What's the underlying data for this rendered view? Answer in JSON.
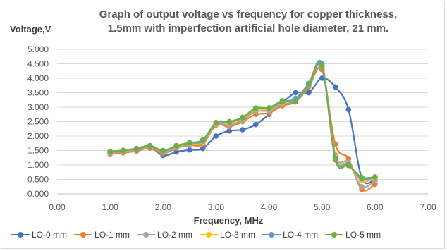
{
  "chart_data": {
    "type": "line",
    "title_lines": [
      "Graph of output voltage vs frequency for copper thickness,",
      "1.5mm with imperfection artificial hole diameter, 21 mm."
    ],
    "xlabel": "Frequency, MHz",
    "ylabel": "Voltage,V",
    "xlim": [
      0,
      7
    ],
    "ylim": [
      0,
      5
    ],
    "x_ticks": [
      "0.00",
      "1.00",
      "2.00",
      "3.00",
      "4.00",
      "5.00",
      "6.00",
      "7.00"
    ],
    "y_ticks": [
      "0.000",
      "0.500",
      "1.000",
      "1.500",
      "2.000",
      "2.500",
      "3.000",
      "3.500",
      "4.000",
      "4.500",
      "5.000"
    ],
    "grid": "horizontal",
    "legend_position": "bottom",
    "x": [
      1.0,
      1.25,
      1.5,
      1.75,
      2.0,
      2.25,
      2.5,
      2.75,
      3.0,
      3.25,
      3.5,
      3.75,
      4.0,
      4.25,
      4.5,
      4.75,
      5.0,
      5.25,
      5.5,
      5.75,
      6.0
    ],
    "series": [
      {
        "name": "LO-0 mm",
        "color": "#4472c4",
        "values": [
          1.45,
          1.48,
          1.53,
          1.62,
          1.33,
          1.45,
          1.52,
          1.57,
          2.0,
          2.18,
          2.22,
          2.4,
          2.75,
          3.15,
          3.5,
          3.5,
          4.0,
          3.7,
          2.92,
          0.55,
          0.5
        ]
      },
      {
        "name": "LO-1 mm",
        "color": "#ed7d31",
        "values": [
          1.38,
          1.42,
          1.48,
          1.58,
          1.4,
          1.58,
          1.68,
          1.72,
          2.38,
          2.32,
          2.5,
          2.75,
          2.8,
          3.05,
          3.18,
          3.7,
          4.3,
          1.72,
          1.22,
          0.15,
          0.33
        ]
      },
      {
        "name": "LO-2 mm",
        "color": "#a5a5a5",
        "values": [
          1.42,
          1.47,
          1.52,
          1.62,
          1.45,
          1.6,
          1.7,
          1.77,
          2.4,
          2.38,
          2.55,
          2.85,
          2.88,
          3.1,
          3.22,
          3.75,
          4.4,
          1.35,
          1.1,
          0.25,
          0.45
        ]
      },
      {
        "name": "LO-3 mm",
        "color": "#ffc000",
        "values": [
          1.44,
          1.49,
          1.54,
          1.64,
          1.47,
          1.63,
          1.74,
          1.8,
          2.43,
          2.45,
          2.6,
          2.92,
          2.93,
          3.15,
          3.25,
          3.8,
          4.45,
          1.3,
          1.05,
          0.45,
          0.55
        ]
      },
      {
        "name": "LO-4 mm",
        "color": "#5b9bd5",
        "values": [
          1.45,
          1.5,
          1.55,
          1.65,
          1.48,
          1.65,
          1.76,
          1.83,
          2.45,
          2.48,
          2.63,
          2.95,
          2.96,
          3.18,
          3.3,
          3.82,
          4.5,
          1.25,
          1.02,
          0.52,
          0.58
        ]
      },
      {
        "name": "LO-5 mm",
        "color": "#70ad47",
        "values": [
          1.47,
          1.51,
          1.57,
          1.67,
          1.5,
          1.67,
          1.77,
          1.87,
          2.47,
          2.5,
          2.65,
          2.97,
          2.98,
          3.22,
          3.2,
          3.8,
          4.42,
          1.18,
          0.98,
          0.57,
          0.59
        ]
      }
    ]
  }
}
